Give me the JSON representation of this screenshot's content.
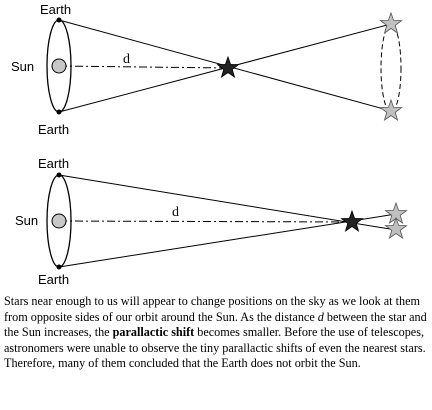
{
  "diagram_top": {
    "earth_top_label": "Earth",
    "sun_label": "Sun",
    "earth_bottom_label": "Earth",
    "distance_label": "d"
  },
  "diagram_bottom": {
    "earth_top_label": "Earth",
    "sun_label": "Sun",
    "earth_bottom_label": "Earth",
    "distance_label": "d"
  },
  "caption": {
    "part1": "Stars near enough to us will appear to change positions on the sky as we look at them from opposite sides of our orbit around the Sun. As the distance",
    "d_symbol": "d",
    "part2": "between the star and the Sun increases, the",
    "bold_term": "parallactic shift",
    "part3": "becomes smaller. Before the use of telescopes, astronomers were unable to observe the tiny parallactic shifts of even the nearest stars. Therefore, many of them concluded that the Earth does not orbit the Sun."
  },
  "colors": {
    "line": "#000000",
    "sun_fill": "#c8c8c8",
    "star_near": "#222222",
    "star_apparent": "#c0c0c0"
  }
}
